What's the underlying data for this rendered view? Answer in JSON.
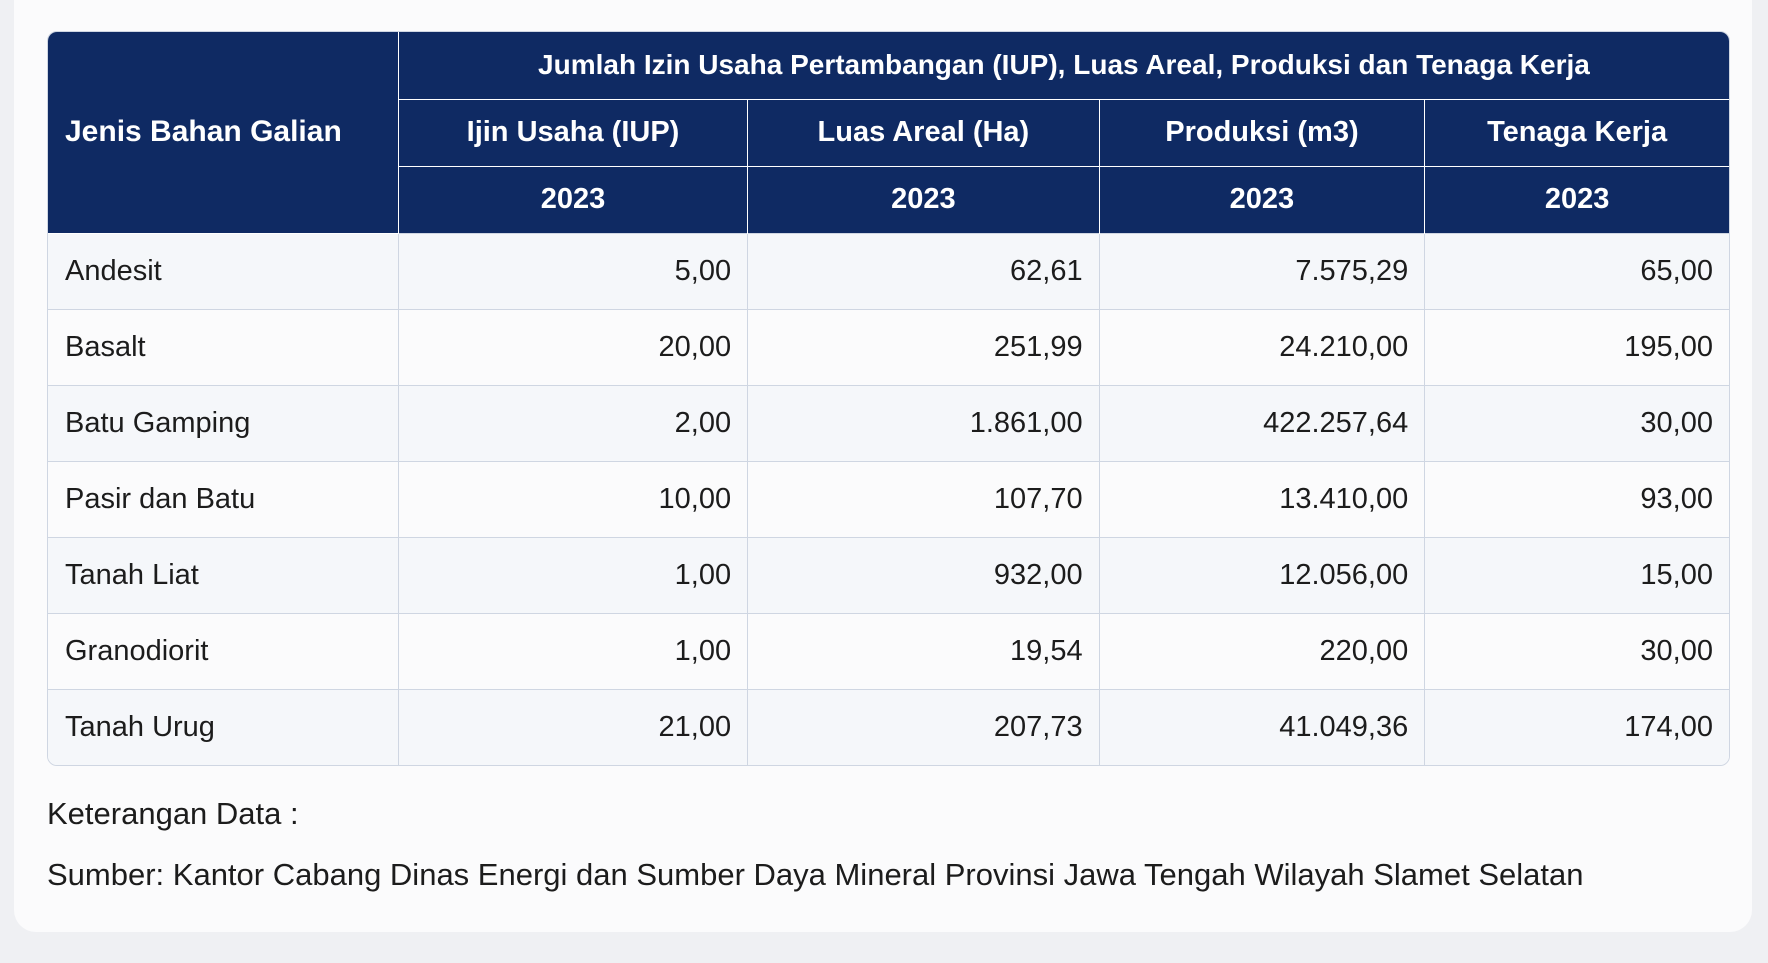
{
  "table": {
    "row_header_label": "Jenis Bahan Galian",
    "group_header": "Jumlah Izin Usaha Pertambangan (IUP), Luas Areal, Produksi dan Tenaga Kerja",
    "columns": [
      {
        "label": "Ijin Usaha (IUP)",
        "year": "2023"
      },
      {
        "label": "Luas Areal (Ha)",
        "year": "2023"
      },
      {
        "label": "Produksi (m3)",
        "year": "2023"
      },
      {
        "label": "Tenaga Kerja",
        "year": "2023"
      }
    ],
    "rows": [
      {
        "name": "Andesit",
        "values": [
          "5,00",
          "62,61",
          "7.575,29",
          "65,00"
        ]
      },
      {
        "name": "Basalt",
        "values": [
          "20,00",
          "251,99",
          "24.210,00",
          "195,00"
        ]
      },
      {
        "name": "Batu Gamping",
        "values": [
          "2,00",
          "1.861,00",
          "422.257,64",
          "30,00"
        ]
      },
      {
        "name": "Pasir dan Batu",
        "values": [
          "10,00",
          "107,70",
          "13.410,00",
          "93,00"
        ]
      },
      {
        "name": "Tanah Liat",
        "values": [
          "1,00",
          "932,00",
          "12.056,00",
          "15,00"
        ]
      },
      {
        "name": "Granodiorit",
        "values": [
          "1,00",
          "19,54",
          "220,00",
          "30,00"
        ]
      },
      {
        "name": "Tanah Urug",
        "values": [
          "21,00",
          "207,73",
          "41.049,36",
          "174,00"
        ]
      }
    ]
  },
  "notes": {
    "title": "Keterangan Data :",
    "source": "Sumber: Kantor Cabang Dinas Energi dan Sumber Daya Mineral Provinsi Jawa Tengah Wilayah Slamet Selatan"
  },
  "colors": {
    "header_bg": "#0f2a63",
    "border": "#cfd6e2"
  }
}
